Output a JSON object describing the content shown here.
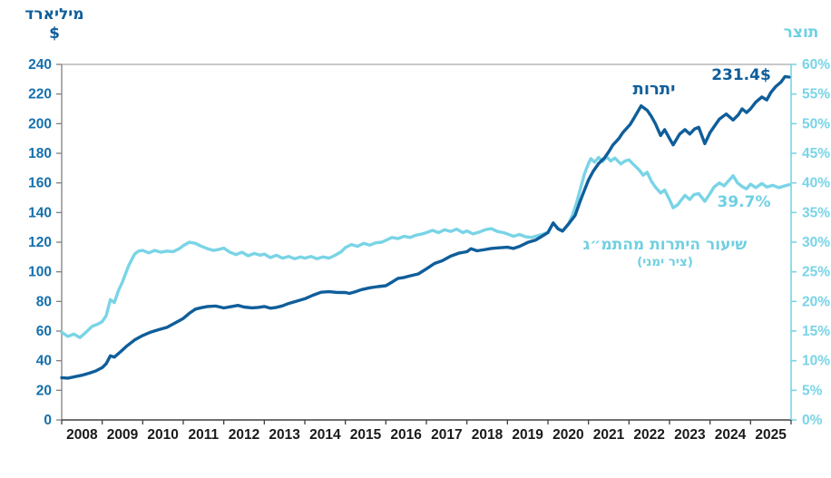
{
  "page": {
    "background": "#ffffff"
  },
  "labels": {
    "left_axis_title_line1": "מיליארד",
    "left_axis_title_line2": "$",
    "right_axis_title": "תוצר",
    "reserves_series_label": "יתרות",
    "reserves_end_value": "231.4$",
    "ratio_series_label_line1": "שיעור היתרות מהתמ״ג",
    "ratio_series_label_line2": "(ציר ימני)",
    "ratio_end_value": "39.7%"
  },
  "colors": {
    "reserves_line": "#0f5e9a",
    "ratio_line": "#79d4e6",
    "left_tick_labels": "#1470ad",
    "right_tick_labels": "#79d4e6",
    "year_labels": "#1a1a1a",
    "top_border": "#a9a9a9",
    "left_axis": "#7f7f7f",
    "bottom_axis": "#404040",
    "right_axis": "#79d4e6"
  },
  "chart_data": {
    "type": "line",
    "title": "",
    "x_axis": {
      "years": [
        2008,
        2009,
        2010,
        2011,
        2012,
        2013,
        2014,
        2015,
        2016,
        2017,
        2018,
        2019,
        2020,
        2021,
        2022,
        2023,
        2024,
        2025
      ],
      "range": [
        2008,
        2026
      ],
      "grid": false
    },
    "left_axis": {
      "title": "מיליארד $",
      "tick_values": [
        0,
        20,
        40,
        60,
        80,
        100,
        120,
        140,
        160,
        180,
        200,
        220,
        240
      ],
      "tick_labels": [
        "0",
        "20",
        "40",
        "60",
        "80",
        "100",
        "120",
        "140",
        "160",
        "180",
        "200",
        "220",
        "240"
      ],
      "range": [
        0,
        240
      ]
    },
    "right_axis": {
      "title": "תוצר",
      "tick_values": [
        0,
        5,
        10,
        15,
        20,
        25,
        30,
        35,
        40,
        45,
        50,
        55,
        60
      ],
      "tick_labels": [
        "0%",
        "5%",
        "10%",
        "15%",
        "20%",
        "25%",
        "30%",
        "35%",
        "40%",
        "45%",
        "50%",
        "55%",
        "60%"
      ],
      "range": [
        0,
        60
      ]
    },
    "legend_position": "inline-annotations",
    "series": [
      {
        "name": "יתרות",
        "axis": "left",
        "units": "billion $",
        "end_label": "231.4$",
        "color": "#0f5e9a",
        "points": [
          [
            2008.0,
            28.5
          ],
          [
            2008.15,
            28.2
          ],
          [
            2008.3,
            29.0
          ],
          [
            2008.5,
            30.2
          ],
          [
            2008.7,
            31.8
          ],
          [
            2008.85,
            33.2
          ],
          [
            2009.0,
            35.3
          ],
          [
            2009.1,
            38.0
          ],
          [
            2009.2,
            43.3
          ],
          [
            2009.3,
            42.4
          ],
          [
            2009.45,
            46.0
          ],
          [
            2009.6,
            49.8
          ],
          [
            2009.8,
            54.0
          ],
          [
            2010.0,
            57.0
          ],
          [
            2010.2,
            59.3
          ],
          [
            2010.4,
            61.0
          ],
          [
            2010.6,
            62.5
          ],
          [
            2010.8,
            65.5
          ],
          [
            2011.0,
            68.5
          ],
          [
            2011.15,
            72.0
          ],
          [
            2011.3,
            74.8
          ],
          [
            2011.45,
            75.8
          ],
          [
            2011.6,
            76.6
          ],
          [
            2011.8,
            76.9
          ],
          [
            2012.0,
            75.6
          ],
          [
            2012.2,
            76.6
          ],
          [
            2012.35,
            77.3
          ],
          [
            2012.5,
            76.2
          ],
          [
            2012.7,
            75.7
          ],
          [
            2012.85,
            76.0
          ],
          [
            2013.0,
            76.6
          ],
          [
            2013.15,
            75.4
          ],
          [
            2013.3,
            76.0
          ],
          [
            2013.45,
            77.0
          ],
          [
            2013.6,
            78.6
          ],
          [
            2013.8,
            80.2
          ],
          [
            2014.0,
            81.8
          ],
          [
            2014.2,
            84.2
          ],
          [
            2014.4,
            86.2
          ],
          [
            2014.6,
            86.6
          ],
          [
            2014.8,
            86.1
          ],
          [
            2015.0,
            86.0
          ],
          [
            2015.1,
            85.4
          ],
          [
            2015.25,
            86.6
          ],
          [
            2015.4,
            88.0
          ],
          [
            2015.6,
            89.2
          ],
          [
            2015.8,
            90.0
          ],
          [
            2016.0,
            90.6
          ],
          [
            2016.15,
            93.0
          ],
          [
            2016.3,
            95.6
          ],
          [
            2016.45,
            96.2
          ],
          [
            2016.6,
            97.3
          ],
          [
            2016.8,
            98.6
          ],
          [
            2017.0,
            102.0
          ],
          [
            2017.2,
            105.6
          ],
          [
            2017.4,
            107.6
          ],
          [
            2017.6,
            110.6
          ],
          [
            2017.8,
            112.6
          ],
          [
            2018.0,
            113.6
          ],
          [
            2018.1,
            115.6
          ],
          [
            2018.25,
            114.2
          ],
          [
            2018.4,
            114.8
          ],
          [
            2018.6,
            115.8
          ],
          [
            2018.8,
            116.2
          ],
          [
            2019.0,
            116.6
          ],
          [
            2019.15,
            115.8
          ],
          [
            2019.3,
            117.2
          ],
          [
            2019.5,
            119.8
          ],
          [
            2019.7,
            121.5
          ],
          [
            2019.85,
            124.0
          ],
          [
            2020.0,
            126.5
          ],
          [
            2020.13,
            133.0
          ],
          [
            2020.25,
            129.0
          ],
          [
            2020.36,
            127.5
          ],
          [
            2020.5,
            132.0
          ],
          [
            2020.67,
            138.0
          ],
          [
            2020.8,
            148.0
          ],
          [
            2020.9,
            155.0
          ],
          [
            2021.0,
            162.0
          ],
          [
            2021.12,
            168.0
          ],
          [
            2021.25,
            173.0
          ],
          [
            2021.4,
            177.0
          ],
          [
            2021.5,
            181.0
          ],
          [
            2021.6,
            185.5
          ],
          [
            2021.75,
            190.0
          ],
          [
            2021.85,
            194.0
          ],
          [
            2022.03,
            199.5
          ],
          [
            2022.15,
            205.0
          ],
          [
            2022.3,
            212.0
          ],
          [
            2022.45,
            209.0
          ],
          [
            2022.55,
            205.0
          ],
          [
            2022.65,
            200.0
          ],
          [
            2022.78,
            192.0
          ],
          [
            2022.88,
            196.0
          ],
          [
            2023.0,
            190.0
          ],
          [
            2023.09,
            185.7
          ],
          [
            2023.25,
            193.0
          ],
          [
            2023.38,
            196.0
          ],
          [
            2023.5,
            193.0
          ],
          [
            2023.62,
            196.5
          ],
          [
            2023.72,
            197.5
          ],
          [
            2023.87,
            186.5
          ],
          [
            2024.0,
            194.0
          ],
          [
            2024.05,
            196.0
          ],
          [
            2024.23,
            203.0
          ],
          [
            2024.4,
            206.5
          ],
          [
            2024.57,
            202.5
          ],
          [
            2024.7,
            206.0
          ],
          [
            2024.79,
            210.0
          ],
          [
            2024.9,
            207.5
          ],
          [
            2025.0,
            210.0
          ],
          [
            2025.13,
            214.5
          ],
          [
            2025.28,
            218.0
          ],
          [
            2025.4,
            216.0
          ],
          [
            2025.5,
            221.0
          ],
          [
            2025.62,
            225.0
          ],
          [
            2025.75,
            228.0
          ],
          [
            2025.85,
            231.8
          ],
          [
            2025.95,
            231.4
          ]
        ]
      },
      {
        "name": "שיעור היתרות מהתמ״ג (ציר ימני)",
        "axis": "right",
        "units": "% of GDP",
        "end_label": "39.7%",
        "color": "#79d4e6",
        "points": [
          [
            2008.0,
            14.8
          ],
          [
            2008.15,
            14.1
          ],
          [
            2008.3,
            14.5
          ],
          [
            2008.45,
            13.9
          ],
          [
            2008.6,
            14.8
          ],
          [
            2008.75,
            15.8
          ],
          [
            2008.9,
            16.2
          ],
          [
            2009.0,
            16.6
          ],
          [
            2009.1,
            17.6
          ],
          [
            2009.2,
            20.3
          ],
          [
            2009.3,
            19.8
          ],
          [
            2009.4,
            21.8
          ],
          [
            2009.5,
            23.3
          ],
          [
            2009.65,
            26.0
          ],
          [
            2009.8,
            28.0
          ],
          [
            2009.9,
            28.5
          ],
          [
            2010.0,
            28.6
          ],
          [
            2010.15,
            28.2
          ],
          [
            2010.3,
            28.6
          ],
          [
            2010.45,
            28.3
          ],
          [
            2010.6,
            28.5
          ],
          [
            2010.75,
            28.4
          ],
          [
            2010.9,
            28.9
          ],
          [
            2011.0,
            29.4
          ],
          [
            2011.15,
            30.0
          ],
          [
            2011.3,
            29.8
          ],
          [
            2011.45,
            29.3
          ],
          [
            2011.6,
            28.9
          ],
          [
            2011.75,
            28.6
          ],
          [
            2011.9,
            28.8
          ],
          [
            2012.0,
            29.0
          ],
          [
            2012.15,
            28.3
          ],
          [
            2012.3,
            27.9
          ],
          [
            2012.45,
            28.3
          ],
          [
            2012.6,
            27.7
          ],
          [
            2012.75,
            28.1
          ],
          [
            2012.9,
            27.8
          ],
          [
            2013.0,
            28.0
          ],
          [
            2013.15,
            27.4
          ],
          [
            2013.3,
            27.8
          ],
          [
            2013.45,
            27.3
          ],
          [
            2013.6,
            27.6
          ],
          [
            2013.75,
            27.2
          ],
          [
            2013.9,
            27.5
          ],
          [
            2014.0,
            27.3
          ],
          [
            2014.15,
            27.6
          ],
          [
            2014.3,
            27.2
          ],
          [
            2014.45,
            27.5
          ],
          [
            2014.6,
            27.3
          ],
          [
            2014.75,
            27.8
          ],
          [
            2014.9,
            28.4
          ],
          [
            2015.0,
            29.1
          ],
          [
            2015.15,
            29.6
          ],
          [
            2015.3,
            29.3
          ],
          [
            2015.45,
            29.8
          ],
          [
            2015.6,
            29.5
          ],
          [
            2015.75,
            29.9
          ],
          [
            2015.9,
            30.0
          ],
          [
            2016.0,
            30.3
          ],
          [
            2016.15,
            30.8
          ],
          [
            2016.3,
            30.6
          ],
          [
            2016.45,
            31.0
          ],
          [
            2016.6,
            30.8
          ],
          [
            2016.75,
            31.2
          ],
          [
            2016.9,
            31.4
          ],
          [
            2017.0,
            31.6
          ],
          [
            2017.15,
            32.0
          ],
          [
            2017.3,
            31.6
          ],
          [
            2017.45,
            32.1
          ],
          [
            2017.6,
            31.8
          ],
          [
            2017.75,
            32.2
          ],
          [
            2017.9,
            31.6
          ],
          [
            2018.0,
            31.9
          ],
          [
            2018.15,
            31.4
          ],
          [
            2018.3,
            31.7
          ],
          [
            2018.45,
            32.1
          ],
          [
            2018.6,
            32.3
          ],
          [
            2018.75,
            31.8
          ],
          [
            2018.9,
            31.6
          ],
          [
            2019.0,
            31.4
          ],
          [
            2019.15,
            31.0
          ],
          [
            2019.3,
            31.3
          ],
          [
            2019.45,
            30.9
          ],
          [
            2019.6,
            30.8
          ],
          [
            2019.75,
            31.1
          ],
          [
            2019.9,
            31.4
          ],
          [
            2020.0,
            31.7
          ],
          [
            2020.13,
            33.2
          ],
          [
            2020.25,
            32.2
          ],
          [
            2020.36,
            31.9
          ],
          [
            2020.5,
            33.0
          ],
          [
            2020.6,
            34.5
          ],
          [
            2020.7,
            36.5
          ],
          [
            2020.8,
            39.0
          ],
          [
            2020.9,
            41.5
          ],
          [
            2021.0,
            43.3
          ],
          [
            2021.06,
            44.1
          ],
          [
            2021.15,
            43.5
          ],
          [
            2021.25,
            44.3
          ],
          [
            2021.35,
            43.6
          ],
          [
            2021.45,
            44.4
          ],
          [
            2021.55,
            43.7
          ],
          [
            2021.65,
            44.2
          ],
          [
            2021.8,
            43.2
          ],
          [
            2021.9,
            43.7
          ],
          [
            2022.0,
            43.9
          ],
          [
            2022.1,
            43.2
          ],
          [
            2022.25,
            42.2
          ],
          [
            2022.35,
            41.3
          ],
          [
            2022.45,
            41.8
          ],
          [
            2022.55,
            40.3
          ],
          [
            2022.65,
            39.3
          ],
          [
            2022.78,
            38.3
          ],
          [
            2022.88,
            38.8
          ],
          [
            2023.0,
            37.2
          ],
          [
            2023.09,
            35.8
          ],
          [
            2023.2,
            36.3
          ],
          [
            2023.3,
            37.2
          ],
          [
            2023.38,
            37.9
          ],
          [
            2023.5,
            37.2
          ],
          [
            2023.6,
            38.0
          ],
          [
            2023.72,
            38.2
          ],
          [
            2023.87,
            36.9
          ],
          [
            2024.0,
            38.2
          ],
          [
            2024.1,
            39.3
          ],
          [
            2024.23,
            40.0
          ],
          [
            2024.35,
            39.5
          ],
          [
            2024.45,
            40.3
          ],
          [
            2024.57,
            41.2
          ],
          [
            2024.68,
            40.0
          ],
          [
            2024.79,
            39.4
          ],
          [
            2024.9,
            39.0
          ],
          [
            2025.0,
            39.8
          ],
          [
            2025.13,
            39.2
          ],
          [
            2025.28,
            39.9
          ],
          [
            2025.4,
            39.3
          ],
          [
            2025.55,
            39.6
          ],
          [
            2025.7,
            39.2
          ],
          [
            2025.85,
            39.5
          ],
          [
            2025.95,
            39.7
          ]
        ]
      }
    ]
  }
}
